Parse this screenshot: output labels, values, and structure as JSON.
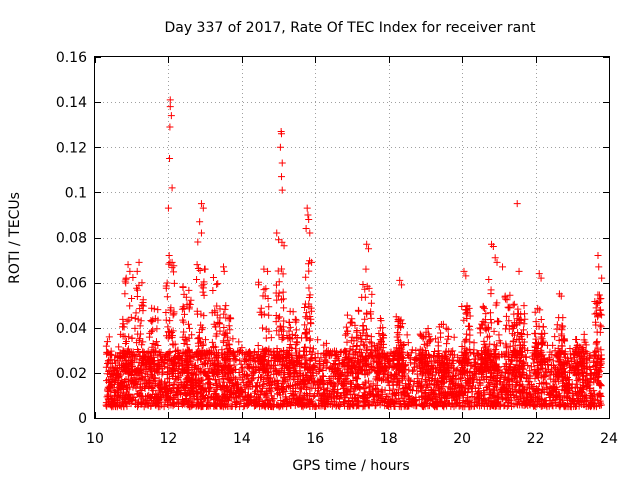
{
  "chart_data": {
    "type": "scatter",
    "title": "Day 337 of 2017, Rate Of TEC Index for receiver rant",
    "xlabel": "GPS time / hours",
    "ylabel": "ROTI / TECUs",
    "xlim": [
      10,
      24
    ],
    "ylim": [
      0,
      0.16
    ],
    "xticks": [
      "10",
      "12",
      "14",
      "16",
      "18",
      "20",
      "22",
      "24"
    ],
    "yticks": [
      "0",
      "0.02",
      "0.04",
      "0.06",
      "0.08",
      "0.1",
      "0.12",
      "0.14",
      "0.16"
    ],
    "grid": true,
    "marker": "+",
    "color": "#ff0000",
    "data_range": [
      10.3,
      23.8
    ],
    "baseline_band": [
      0.005,
      0.03
    ],
    "notable_points": [
      {
        "x": 12.05,
        "y": 0.141
      },
      {
        "x": 12.05,
        "y": 0.138
      },
      {
        "x": 12.08,
        "y": 0.134
      },
      {
        "x": 12.04,
        "y": 0.129
      },
      {
        "x": 12.03,
        "y": 0.115
      },
      {
        "x": 12.1,
        "y": 0.102
      },
      {
        "x": 12.0,
        "y": 0.093
      },
      {
        "x": 12.02,
        "y": 0.072
      },
      {
        "x": 12.1,
        "y": 0.069
      },
      {
        "x": 12.9,
        "y": 0.095
      },
      {
        "x": 12.95,
        "y": 0.093
      },
      {
        "x": 12.85,
        "y": 0.087
      },
      {
        "x": 12.9,
        "y": 0.082
      },
      {
        "x": 12.8,
        "y": 0.078
      },
      {
        "x": 13.0,
        "y": 0.066
      },
      {
        "x": 15.07,
        "y": 0.127
      },
      {
        "x": 15.08,
        "y": 0.126
      },
      {
        "x": 15.05,
        "y": 0.12
      },
      {
        "x": 15.1,
        "y": 0.113
      },
      {
        "x": 15.08,
        "y": 0.107
      },
      {
        "x": 15.1,
        "y": 0.101
      },
      {
        "x": 14.95,
        "y": 0.082
      },
      {
        "x": 15.0,
        "y": 0.079
      },
      {
        "x": 15.78,
        "y": 0.093
      },
      {
        "x": 15.8,
        "y": 0.09
      },
      {
        "x": 15.82,
        "y": 0.088
      },
      {
        "x": 15.75,
        "y": 0.084
      },
      {
        "x": 15.85,
        "y": 0.082
      },
      {
        "x": 15.9,
        "y": 0.069
      },
      {
        "x": 17.4,
        "y": 0.077
      },
      {
        "x": 17.45,
        "y": 0.075
      },
      {
        "x": 17.38,
        "y": 0.066
      },
      {
        "x": 18.3,
        "y": 0.061
      },
      {
        "x": 18.35,
        "y": 0.059
      },
      {
        "x": 20.05,
        "y": 0.065
      },
      {
        "x": 20.1,
        "y": 0.063
      },
      {
        "x": 20.8,
        "y": 0.077
      },
      {
        "x": 20.85,
        "y": 0.076
      },
      {
        "x": 20.9,
        "y": 0.071
      },
      {
        "x": 20.95,
        "y": 0.069
      },
      {
        "x": 21.1,
        "y": 0.067
      },
      {
        "x": 21.5,
        "y": 0.095
      },
      {
        "x": 21.55,
        "y": 0.065
      },
      {
        "x": 22.1,
        "y": 0.064
      },
      {
        "x": 22.15,
        "y": 0.062
      },
      {
        "x": 22.65,
        "y": 0.055
      },
      {
        "x": 22.7,
        "y": 0.054
      },
      {
        "x": 23.7,
        "y": 0.072
      },
      {
        "x": 23.72,
        "y": 0.067
      },
      {
        "x": 23.8,
        "y": 0.062
      },
      {
        "x": 10.9,
        "y": 0.068
      },
      {
        "x": 10.95,
        "y": 0.065
      },
      {
        "x": 11.2,
        "y": 0.069
      },
      {
        "x": 11.15,
        "y": 0.065
      },
      {
        "x": 10.85,
        "y": 0.062
      },
      {
        "x": 13.5,
        "y": 0.067
      },
      {
        "x": 13.52,
        "y": 0.065
      },
      {
        "x": 14.6,
        "y": 0.066
      },
      {
        "x": 14.7,
        "y": 0.065
      }
    ],
    "activity_bursts": [
      {
        "x": 10.9,
        "peak": 0.064,
        "width": 0.15
      },
      {
        "x": 11.2,
        "peak": 0.06,
        "width": 0.12
      },
      {
        "x": 11.6,
        "peak": 0.05,
        "width": 0.12
      },
      {
        "x": 12.05,
        "peak": 0.07,
        "width": 0.12
      },
      {
        "x": 12.5,
        "peak": 0.06,
        "width": 0.12
      },
      {
        "x": 12.9,
        "peak": 0.07,
        "width": 0.15
      },
      {
        "x": 13.3,
        "peak": 0.066,
        "width": 0.12
      },
      {
        "x": 13.6,
        "peak": 0.05,
        "width": 0.1
      },
      {
        "x": 14.6,
        "peak": 0.064,
        "width": 0.15
      },
      {
        "x": 15.05,
        "peak": 0.08,
        "width": 0.12
      },
      {
        "x": 15.4,
        "peak": 0.048,
        "width": 0.12
      },
      {
        "x": 15.8,
        "peak": 0.07,
        "width": 0.1
      },
      {
        "x": 17.0,
        "peak": 0.052,
        "width": 0.2
      },
      {
        "x": 17.4,
        "peak": 0.06,
        "width": 0.15
      },
      {
        "x": 17.8,
        "peak": 0.045,
        "width": 0.12
      },
      {
        "x": 18.3,
        "peak": 0.045,
        "width": 0.1
      },
      {
        "x": 19.0,
        "peak": 0.04,
        "width": 0.15
      },
      {
        "x": 19.5,
        "peak": 0.042,
        "width": 0.15
      },
      {
        "x": 20.1,
        "peak": 0.05,
        "width": 0.12
      },
      {
        "x": 20.6,
        "peak": 0.05,
        "width": 0.12
      },
      {
        "x": 20.85,
        "peak": 0.062,
        "width": 0.15
      },
      {
        "x": 21.3,
        "peak": 0.055,
        "width": 0.15
      },
      {
        "x": 21.6,
        "peak": 0.05,
        "width": 0.12
      },
      {
        "x": 22.1,
        "peak": 0.05,
        "width": 0.12
      },
      {
        "x": 22.7,
        "peak": 0.045,
        "width": 0.12
      },
      {
        "x": 23.2,
        "peak": 0.035,
        "width": 0.15
      },
      {
        "x": 23.7,
        "peak": 0.055,
        "width": 0.1
      }
    ]
  }
}
